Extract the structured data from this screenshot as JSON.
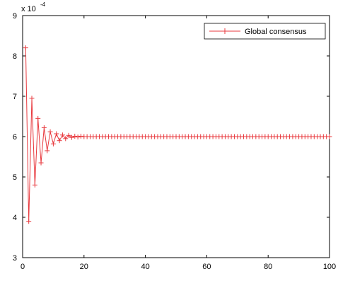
{
  "chart_data": {
    "type": "line",
    "title": "",
    "xlabel": "",
    "ylabel": "",
    "scale_note": "x 10",
    "scale_exponent": "-4",
    "xlim": [
      0,
      100
    ],
    "ylim": [
      3,
      9
    ],
    "xticks": [
      "0",
      "20",
      "40",
      "60",
      "80",
      "100"
    ],
    "yticks": [
      "3",
      "4",
      "5",
      "6",
      "7",
      "8",
      "9"
    ],
    "grid": false,
    "legend_position": "top-right",
    "series": [
      {
        "name": "Global consensus",
        "color": "#e8383d",
        "marker": "plus",
        "x": [
          1,
          2,
          3,
          4,
          5,
          6,
          7,
          8,
          9,
          10,
          11,
          12,
          13,
          14,
          15,
          16,
          17,
          18,
          19,
          20,
          21,
          22,
          23,
          24,
          25,
          26,
          27,
          28,
          29,
          30,
          31,
          32,
          33,
          34,
          35,
          36,
          37,
          38,
          39,
          40,
          41,
          42,
          43,
          44,
          45,
          46,
          47,
          48,
          49,
          50,
          51,
          52,
          53,
          54,
          55,
          56,
          57,
          58,
          59,
          60,
          61,
          62,
          63,
          64,
          65,
          66,
          67,
          68,
          69,
          70,
          71,
          72,
          73,
          74,
          75,
          76,
          77,
          78,
          79,
          80,
          81,
          82,
          83,
          84,
          85,
          86,
          87,
          88,
          89,
          90,
          91,
          92,
          93,
          94,
          95,
          96,
          97,
          98,
          99,
          100
        ],
        "y": [
          8.2,
          3.9,
          6.95,
          4.8,
          6.45,
          5.35,
          6.22,
          5.65,
          6.12,
          5.82,
          6.07,
          5.9,
          6.04,
          5.95,
          6.03,
          5.98,
          6.01,
          5.99,
          6.01,
          6.0,
          6.0,
          6.0,
          6.0,
          6.0,
          6.0,
          6.0,
          6.0,
          6.0,
          6.0,
          6.0,
          6.0,
          6.0,
          6.0,
          6.0,
          6.0,
          6.0,
          6.0,
          6.0,
          6.0,
          6.0,
          6.0,
          6.0,
          6.0,
          6.0,
          6.0,
          6.0,
          6.0,
          6.0,
          6.0,
          6.0,
          6.0,
          6.0,
          6.0,
          6.0,
          6.0,
          6.0,
          6.0,
          6.0,
          6.0,
          6.0,
          6.0,
          6.0,
          6.0,
          6.0,
          6.0,
          6.0,
          6.0,
          6.0,
          6.0,
          6.0,
          6.0,
          6.0,
          6.0,
          6.0,
          6.0,
          6.0,
          6.0,
          6.0,
          6.0,
          6.0,
          6.0,
          6.0,
          6.0,
          6.0,
          6.0,
          6.0,
          6.0,
          6.0,
          6.0,
          6.0,
          6.0,
          6.0,
          6.0,
          6.0,
          6.0,
          6.0,
          6.0,
          6.0,
          6.0,
          6.0
        ]
      }
    ]
  }
}
